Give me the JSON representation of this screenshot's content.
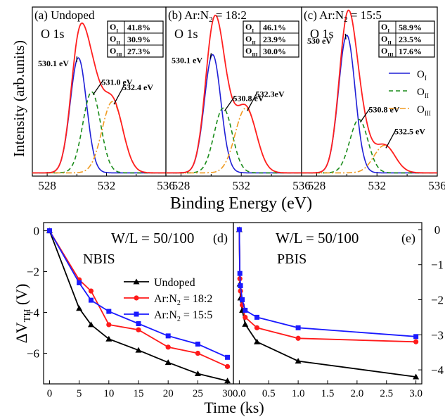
{
  "figure": {
    "top_ylabel": "Intensity (arb.units)",
    "top_xlabel": "Binding Energy (eV)",
    "bottom_ylabel": "ΔV_TH (V)",
    "bottom_xlabel": "Time (ks)"
  },
  "colors": {
    "O_I": "#1f1fd6",
    "O_II": "#1a8c1a",
    "O_III": "#f09a20",
    "total": "#ff2020",
    "undoped": "#000000",
    "ar18": "#ff1a1a",
    "ar15": "#1a1aff"
  },
  "chart_data": [
    {
      "type": "line",
      "panel": "a",
      "title": "(a) Undoped",
      "subtitle": "O 1s",
      "xlim": [
        527,
        536
      ],
      "xticks": [
        528,
        532,
        536
      ],
      "table": [
        [
          "O_I",
          "41.8%"
        ],
        [
          "O_II",
          "30.9%"
        ],
        [
          "O_III",
          "27.3%"
        ]
      ],
      "peaks": [
        {
          "name": "O_I",
          "center": 530.1,
          "height": 0.71,
          "label": "530.1 eV"
        },
        {
          "name": "O_II",
          "center": 531.0,
          "height": 0.5,
          "label": "531.0 eV"
        },
        {
          "name": "O_III",
          "center": 532.4,
          "height": 0.44,
          "label": "532.4 eV"
        }
      ]
    },
    {
      "type": "line",
      "panel": "b",
      "title": "(b) Ar:N2 = 18:2",
      "subtitle": "O 1s",
      "xlim": [
        527,
        536
      ],
      "xticks": [
        528,
        532,
        536
      ],
      "table": [
        [
          "O_I",
          "46.1%"
        ],
        [
          "O_II",
          "23.9%"
        ],
        [
          "O_III",
          "30.0%"
        ]
      ],
      "peaks": [
        {
          "name": "O_I",
          "center": 530.1,
          "height": 0.73,
          "label": "530.1 eV"
        },
        {
          "name": "O_II",
          "center": 530.8,
          "height": 0.4,
          "label": "530.8 eV"
        },
        {
          "name": "O_III",
          "center": 532.3,
          "height": 0.4,
          "label": "532.3eV"
        }
      ]
    },
    {
      "type": "line",
      "panel": "c",
      "title": "(c) Ar:N2 = 15:5",
      "subtitle": "O 1s",
      "xlim": [
        527,
        536
      ],
      "xticks": [
        528,
        532,
        536
      ],
      "table": [
        [
          "O_I",
          "58.9%"
        ],
        [
          "O_II",
          "23.5%"
        ],
        [
          "O_III",
          "17.6%"
        ]
      ],
      "legend": [
        "O_I",
        "O_II",
        "O_III"
      ],
      "peaks": [
        {
          "name": "O_I",
          "center": 530.0,
          "height": 0.85,
          "label": "530 eV"
        },
        {
          "name": "O_II",
          "center": 530.8,
          "height": 0.33,
          "label": "530.8 eV"
        },
        {
          "name": "O_III",
          "center": 532.5,
          "height": 0.17,
          "label": "532.5 eV"
        }
      ]
    },
    {
      "type": "line",
      "panel": "d",
      "annot": "W/L = 50/100",
      "label": "(d)",
      "subtitle": "NBIS",
      "xlim": [
        -1,
        31
      ],
      "ylim": [
        -7.5,
        0.4
      ],
      "xticks": [
        0,
        5,
        10,
        15,
        20,
        25,
        30
      ],
      "yticks": [
        0,
        -2,
        -4,
        -6
      ],
      "series": [
        {
          "name": "Undoped",
          "key": "undoped",
          "x": [
            0,
            5,
            7,
            10,
            15,
            20,
            25,
            30
          ],
          "y": [
            0,
            -3.8,
            -4.6,
            -5.3,
            -5.85,
            -6.45,
            -7.0,
            -7.35
          ]
        },
        {
          "name": "Ar:N2 = 18:2",
          "key": "ar18",
          "x": [
            0,
            5,
            7,
            10,
            15,
            20,
            25,
            30
          ],
          "y": [
            0,
            -2.4,
            -2.95,
            -4.6,
            -4.85,
            -5.7,
            -6.0,
            -6.65
          ]
        },
        {
          "name": "Ar:N2 = 15:5",
          "key": "ar15",
          "x": [
            0,
            5,
            7,
            10,
            15,
            20,
            25,
            30
          ],
          "y": [
            0,
            -2.55,
            -3.4,
            -3.95,
            -4.55,
            -5.15,
            -5.55,
            -6.2
          ]
        }
      ]
    },
    {
      "type": "line",
      "panel": "e",
      "annot": "W/L = 50/100",
      "label": "(e)",
      "subtitle": "PBIS",
      "xlim": [
        -0.1,
        3.1
      ],
      "ylim": [
        -4.4,
        0.2
      ],
      "xticks": [
        0.0,
        0.5,
        1.0,
        1.5,
        2.0,
        2.5,
        3.0
      ],
      "yticks": [
        0,
        -1,
        -2,
        -3,
        -4
      ],
      "series": [
        {
          "name": "Undoped",
          "key": "undoped",
          "x": [
            0,
            0.01,
            0.02,
            0.05,
            0.1,
            0.3,
            1.0,
            3.0
          ],
          "y": [
            0,
            -1.55,
            -1.95,
            -2.3,
            -2.7,
            -3.2,
            -3.75,
            -4.2
          ]
        },
        {
          "name": "Ar:N2 = 18:2",
          "key": "ar18",
          "x": [
            0,
            0.01,
            0.02,
            0.05,
            0.1,
            0.3,
            1.0,
            3.0
          ],
          "y": [
            0,
            -1.4,
            -1.75,
            -2.15,
            -2.5,
            -2.8,
            -3.1,
            -3.2
          ]
        },
        {
          "name": "Ar:N2 = 15:5",
          "key": "ar15",
          "x": [
            0,
            0.01,
            0.02,
            0.05,
            0.1,
            0.3,
            1.0,
            3.0
          ],
          "y": [
            0,
            -1.25,
            -1.6,
            -2.0,
            -2.3,
            -2.5,
            -2.8,
            -3.05
          ]
        }
      ]
    }
  ]
}
